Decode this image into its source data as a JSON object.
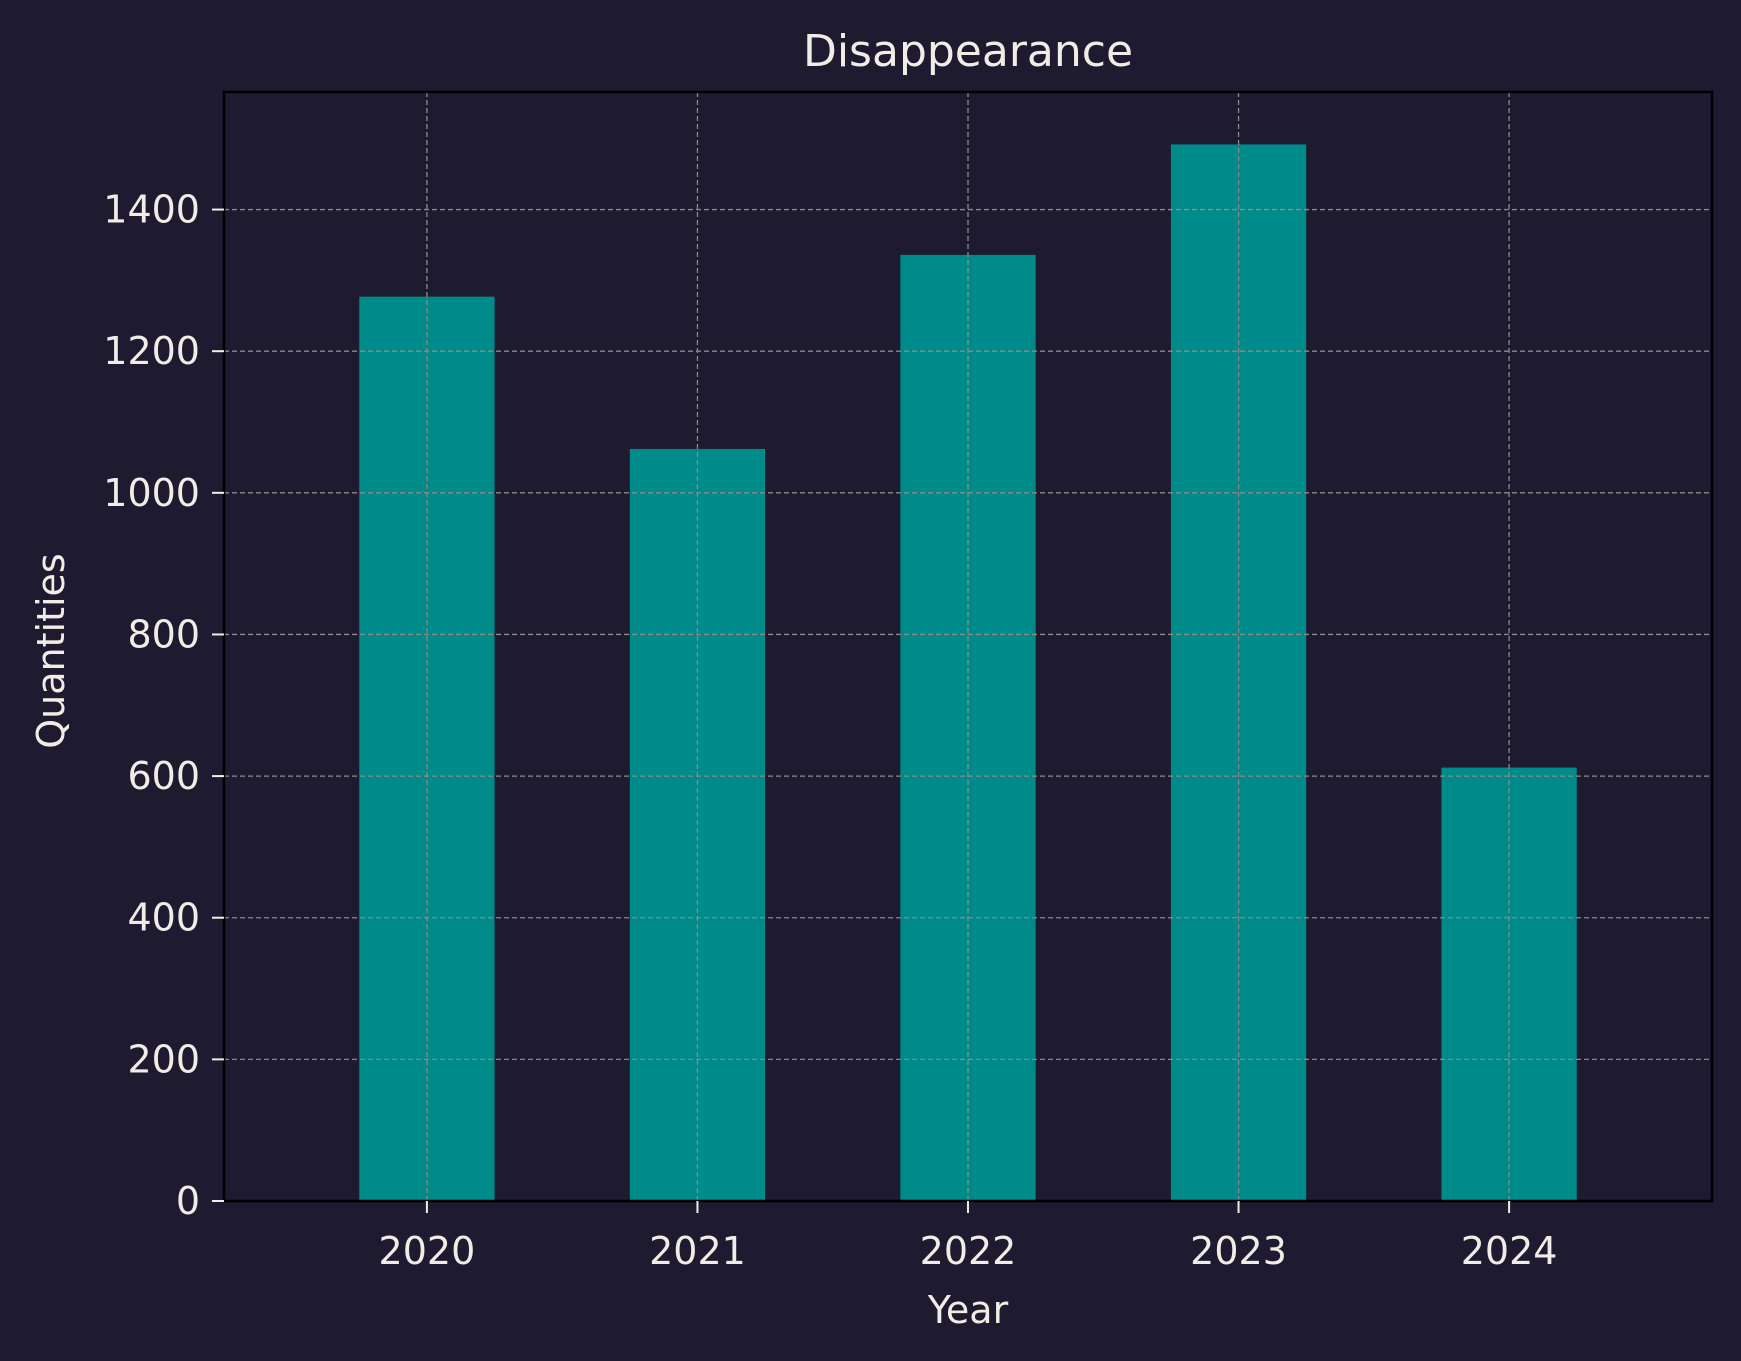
{
  "chart_data": {
    "type": "bar",
    "title": "Disappearance",
    "xlabel": "Year",
    "ylabel": "Quantities",
    "categories": [
      "2020",
      "2021",
      "2022",
      "2023",
      "2024"
    ],
    "values": [
      1277,
      1062,
      1336,
      1492,
      612
    ],
    "ylim": [
      0,
      1566
    ],
    "yticks": [
      0,
      200,
      400,
      600,
      800,
      1000,
      1200,
      1400
    ],
    "grid": true,
    "legend": "none",
    "colors": {
      "background": "#1e1a2f",
      "bar": "#008b8b",
      "text": "#f2ece6",
      "grid": "#8a8a8a",
      "axes": "#000000"
    }
  }
}
